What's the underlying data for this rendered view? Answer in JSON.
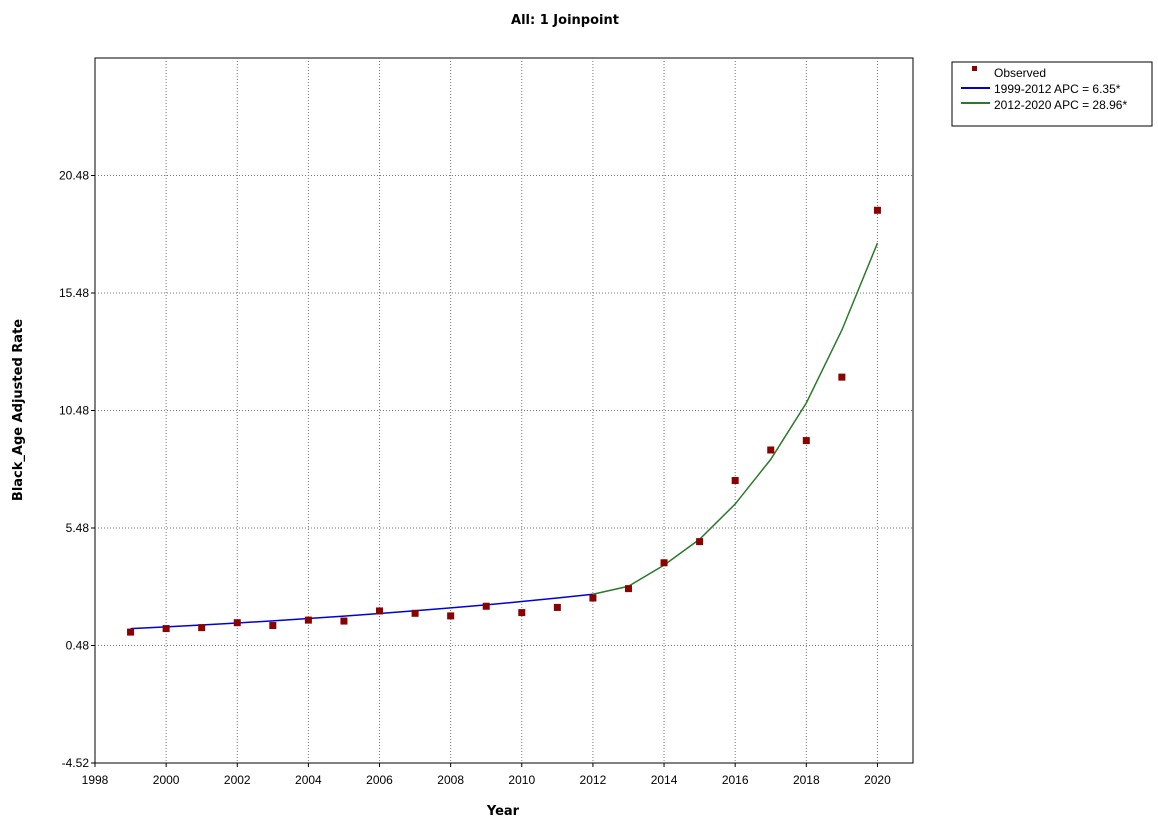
{
  "chart_data": {
    "type": "line",
    "title": "All: 1 Joinpoint",
    "xlabel": "Year",
    "ylabel": "Black_Age Adjusted Rate",
    "xlim": [
      1998,
      2021
    ],
    "ylim": [
      -4.52,
      25.48
    ],
    "x_ticks": [
      1998,
      2000,
      2002,
      2004,
      2006,
      2008,
      2010,
      2012,
      2014,
      2016,
      2018,
      2020
    ],
    "y_ticks": [
      -4.52,
      0.48,
      5.48,
      10.48,
      15.48,
      20.48
    ],
    "grid": true,
    "legend_position": "top-right outside",
    "observed": {
      "name": "Observed",
      "color": "#8b0000",
      "x": [
        1999,
        2000,
        2001,
        2002,
        2003,
        2004,
        2005,
        2006,
        2007,
        2008,
        2009,
        2010,
        2011,
        2012,
        2013,
        2014,
        2015,
        2016,
        2017,
        2018,
        2019,
        2020
      ],
      "y": [
        1.05,
        1.2,
        1.24,
        1.45,
        1.33,
        1.56,
        1.52,
        1.95,
        1.85,
        1.74,
        2.15,
        1.88,
        2.1,
        2.5,
        2.9,
        4.0,
        4.9,
        7.5,
        8.8,
        9.2,
        11.9,
        19.0
      ]
    },
    "series": [
      {
        "name": "1999-2012 APC =  6.35*",
        "color": "#0000dd",
        "x": [
          1999,
          2000,
          2001,
          2002,
          2003,
          2004,
          2005,
          2006,
          2007,
          2008,
          2009,
          2010,
          2011,
          2012
        ],
        "y": [
          1.2,
          1.27,
          1.35,
          1.44,
          1.53,
          1.63,
          1.73,
          1.84,
          1.96,
          2.08,
          2.21,
          2.35,
          2.5,
          2.66
        ]
      },
      {
        "name": "2012-2020 APC = 28.96*",
        "color": "#2a7a2a",
        "x": [
          2012,
          2013,
          2014,
          2015,
          2016,
          2017,
          2018,
          2019,
          2020
        ],
        "y": [
          2.66,
          3.0,
          3.9,
          5.0,
          6.5,
          8.4,
          10.8,
          13.9,
          17.6
        ]
      }
    ]
  }
}
